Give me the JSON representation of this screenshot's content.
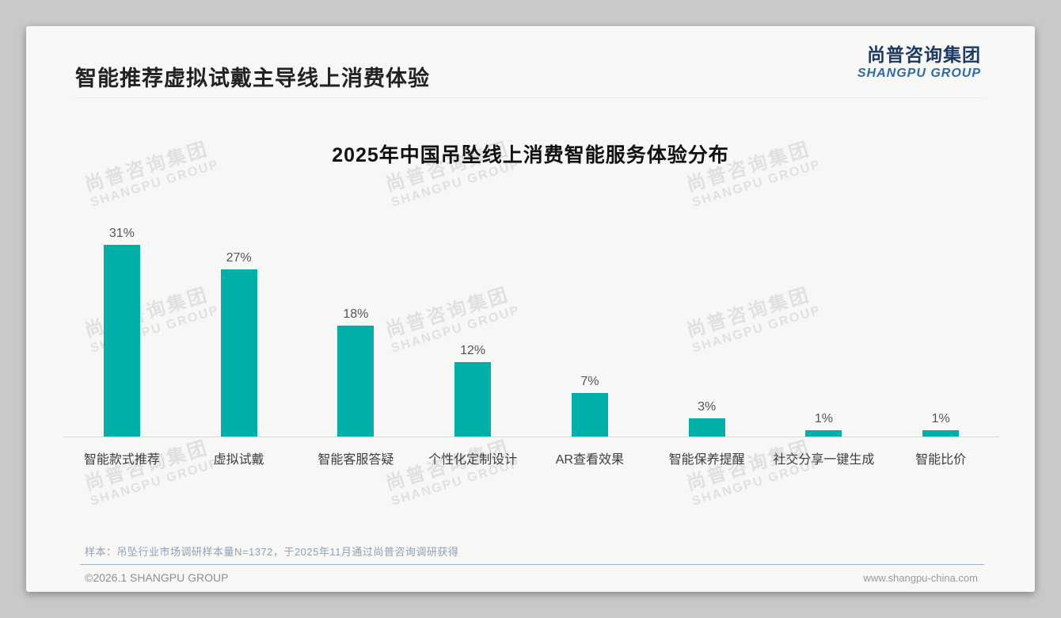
{
  "header": {
    "page_title": "智能推荐虚拟试戴主导线上消费体验",
    "logo": {
      "name_cn": "尚普咨询集团",
      "name_en": "SHANGPU GROUP"
    }
  },
  "chart_data": {
    "type": "bar",
    "title": "2025年中国吊坠线上消费智能服务体验分布",
    "categories": [
      "智能款式推荐",
      "虚拟试戴",
      "智能客服答疑",
      "个性化定制设计",
      "AR查看效果",
      "智能保养提醒",
      "社交分享一键生成",
      "智能比价"
    ],
    "values": [
      31,
      27,
      18,
      12,
      7,
      3,
      1,
      1
    ],
    "unit": "%",
    "data_labels": [
      "31%",
      "27%",
      "18%",
      "12%",
      "7%",
      "3%",
      "1%",
      "1%"
    ],
    "xlabel": "",
    "ylabel": "",
    "ylim": [
      0,
      35
    ],
    "grid": false,
    "legend": null,
    "bar_color": "#00afa8",
    "axis_line_color": "#d9d9d9"
  },
  "watermark": {
    "line1": "尚普咨询集团",
    "line2": "SHANGPU GROUP"
  },
  "footer": {
    "note": "样本：吊坠行业市场调研样本量N=1372，于2025年11月通过尚普咨询调研获得",
    "copyright": "©2026.1 SHANGPU GROUP",
    "website": "www.shangpu-china.com"
  },
  "colors": {
    "bar_teal": "#00afa8",
    "logo_navy": "#1e3a63",
    "logo_blue": "#2d6ca6",
    "note_text": "#91a1b4",
    "divider": "#9fb2c5",
    "axis": "#d9d9d9"
  }
}
